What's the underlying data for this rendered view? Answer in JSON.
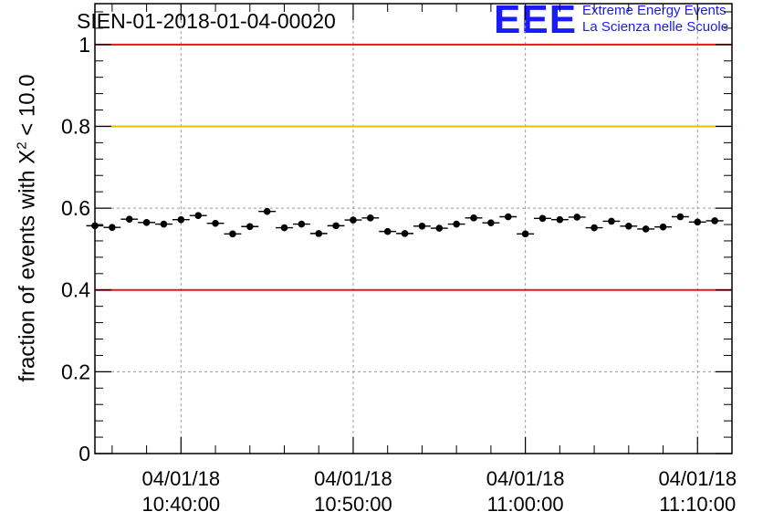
{
  "chart_data": {
    "type": "scatter",
    "title": "SIEN-01-2018-01-04-00020",
    "ylabel_prefix": "fraction of events with X",
    "ylabel_sup": "2",
    "ylabel_suffix": " < 10.0",
    "ylim": [
      0,
      1.1
    ],
    "yticks": [
      "0",
      "0.2",
      "0.4",
      "0.6",
      "0.8",
      "1"
    ],
    "ytick_values": [
      0,
      0.2,
      0.4,
      0.6,
      0.8,
      1.0
    ],
    "xlim_minutes": [
      -5,
      32
    ],
    "xticks": [
      {
        "minute": 0,
        "date": "04/01/18",
        "time": "10:40:00"
      },
      {
        "minute": 10,
        "date": "04/01/18",
        "time": "10:50:00"
      },
      {
        "minute": 20,
        "date": "04/01/18",
        "time": "11:00:00"
      },
      {
        "minute": 30,
        "date": "04/01/18",
        "time": "11:10:00"
      }
    ],
    "reference_lines": [
      {
        "y": 1.0,
        "color": "#e8141b"
      },
      {
        "y": 0.8,
        "color": "#f5b800"
      },
      {
        "y": 0.4,
        "color": "#e8141b"
      }
    ],
    "grid": true,
    "series": [
      {
        "name": "fraction",
        "x_minutes_start": -5,
        "x_minutes_step": 1,
        "values": [
          0.557,
          0.553,
          0.573,
          0.565,
          0.561,
          0.572,
          0.582,
          0.563,
          0.537,
          0.555,
          0.592,
          0.552,
          0.561,
          0.538,
          0.557,
          0.571,
          0.576,
          0.543,
          0.538,
          0.556,
          0.551,
          0.561,
          0.576,
          0.564,
          0.579,
          0.537,
          0.575,
          0.572,
          0.578,
          0.552,
          0.568,
          0.556,
          0.549,
          0.554,
          0.579,
          0.566,
          0.569
        ],
        "error": 0.008
      }
    ]
  },
  "logo": {
    "mark": "EEE",
    "line1": "Extreme Energy Events",
    "line2": "La Scienza nelle Scuole"
  }
}
